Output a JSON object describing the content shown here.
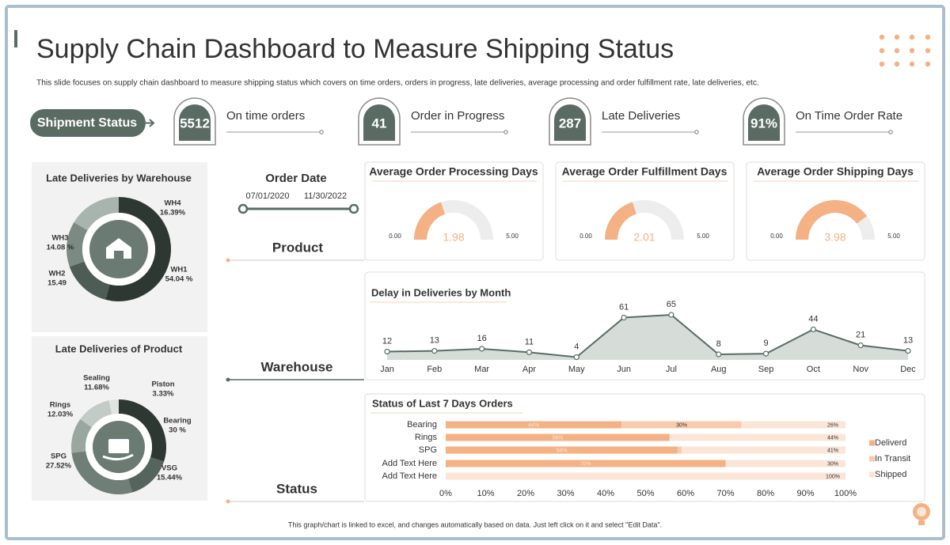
{
  "header": {
    "title": "Supply Chain Dashboard to Measure Shipping Status",
    "subtitle": "This slide focuses on supply chain dashboard to measure shipping status which covers on time orders, orders in progress, late deliveries, average processing and order fulfillment rate, late deliveries, etc."
  },
  "shipment_status": "Shipment Status",
  "kpis": [
    {
      "value": "5512",
      "label": "On time orders"
    },
    {
      "value": "41",
      "label": "Order in Progress"
    },
    {
      "value": "287",
      "label": "Late Deliveries"
    },
    {
      "value": "91%",
      "label": "On Time Order Rate"
    }
  ],
  "order_date": {
    "label": "Order  Date",
    "start": "07/01/2020",
    "end": "11/30/2022"
  },
  "sections": [
    "Product",
    "Warehouse",
    "Status"
  ],
  "footer": "This graph/chart is linked to excel, and changes automatically based on data. Just left click on it and select \"Edit Data\".",
  "chart_data": [
    {
      "type": "pie",
      "title": "Late Deliveries by Warehouse",
      "categories": [
        "WH1",
        "WH2",
        "WH3",
        "WH4"
      ],
      "values": [
        54.04,
        15.49,
        14.08,
        16.39
      ],
      "value_labels": [
        "54.04 %",
        "15.49",
        "14.08 %",
        "16.39%"
      ],
      "colors": [
        "#2e3833",
        "#4d5c55",
        "#7b8a83",
        "#a8b4ae"
      ]
    },
    {
      "type": "pie",
      "title": "Late Deliveries of Product",
      "categories": [
        "Bearing",
        "VSG",
        "SPG",
        "Rings",
        "Sealing",
        "Piston"
      ],
      "values": [
        30,
        15.44,
        27.52,
        12.03,
        11.68,
        3.33
      ],
      "value_labels": [
        "30 %",
        "15.44%",
        "27.52%",
        "12.03%",
        "11.68%",
        "3.33%"
      ],
      "colors": [
        "#2e3833",
        "#55645d",
        "#6f7e77",
        "#9aa7a0",
        "#c2cbc6",
        "#dfe4e1"
      ]
    },
    {
      "type": "gauge",
      "title": "Average Order Processing Days",
      "value": 1.98,
      "ylim": [
        0,
        5
      ],
      "yticks": [
        {
          "value": 0,
          "label": "0.00"
        },
        {
          "value": 5,
          "label": "5.00"
        }
      ],
      "color": "#f4b183",
      "track_color": "#ededed"
    },
    {
      "type": "gauge",
      "title": "Average Order Fulfillment Days",
      "value": 2.01,
      "ylim": [
        0,
        5
      ],
      "yticks": [
        {
          "value": 0,
          "label": "0.00"
        },
        {
          "value": 5,
          "label": "5.00"
        }
      ],
      "color": "#f4b183",
      "track_color": "#ededed"
    },
    {
      "type": "gauge",
      "title": "Average Order Shipping Days",
      "value": 3.98,
      "ylim": [
        0,
        5
      ],
      "yticks": [
        {
          "value": 0,
          "label": "0.00"
        },
        {
          "value": 5,
          "label": "5.00"
        }
      ],
      "color": "#f4b183",
      "track_color": "#ededed"
    },
    {
      "type": "line",
      "title": "Delay in Deliveries by Month",
      "categories": [
        "Jan",
        "Feb",
        "Mar",
        "Apr",
        "May",
        "Jun",
        "Jul",
        "Aug",
        "Sep",
        "Oct",
        "Nov",
        "Dec"
      ],
      "values": [
        12,
        13,
        16,
        11,
        4,
        61,
        65,
        8,
        9,
        44,
        21,
        13
      ],
      "color": "#5a6b64",
      "area_color": "#d6ddd9"
    },
    {
      "type": "bar",
      "orientation": "horizontal",
      "stacked": true,
      "title": "Status of Last 7 Days Orders",
      "categories": [
        "Bearing",
        "Rings",
        "SPG",
        "Add Text Here",
        "Add Text Here"
      ],
      "series": [
        {
          "name": "Deliverd",
          "color": "#f4b183",
          "values": [
            44,
            56,
            58,
            70,
            null
          ],
          "value_labels": [
            "44%",
            "56%",
            "58%",
            "70%",
            null
          ]
        },
        {
          "name": "In Transit",
          "color": "#f8cbad",
          "values": [
            30,
            null,
            1,
            null,
            null
          ],
          "value_labels": [
            "30%",
            null,
            null,
            null,
            null
          ]
        },
        {
          "name": "Shipped",
          "color": "#fbe5d6",
          "values": [
            26,
            44,
            41,
            30,
            100
          ],
          "value_labels": [
            "26%",
            "44%",
            "41%",
            "30%",
            "100%"
          ]
        }
      ],
      "xlim": [
        0,
        100
      ],
      "xticks": [
        {
          "value": 0,
          "label": "0%"
        },
        {
          "value": 10,
          "label": "10%"
        },
        {
          "value": 20,
          "label": "20%"
        },
        {
          "value": 30,
          "label": "30%"
        },
        {
          "value": 40,
          "label": "40%"
        },
        {
          "value": 50,
          "label": "50%"
        },
        {
          "value": 60,
          "label": "60%"
        },
        {
          "value": 70,
          "label": "70%"
        },
        {
          "value": 80,
          "label": "80%"
        },
        {
          "value": 90,
          "label": "90%"
        },
        {
          "value": 100,
          "label": "100%"
        }
      ],
      "legend": "right"
    }
  ]
}
